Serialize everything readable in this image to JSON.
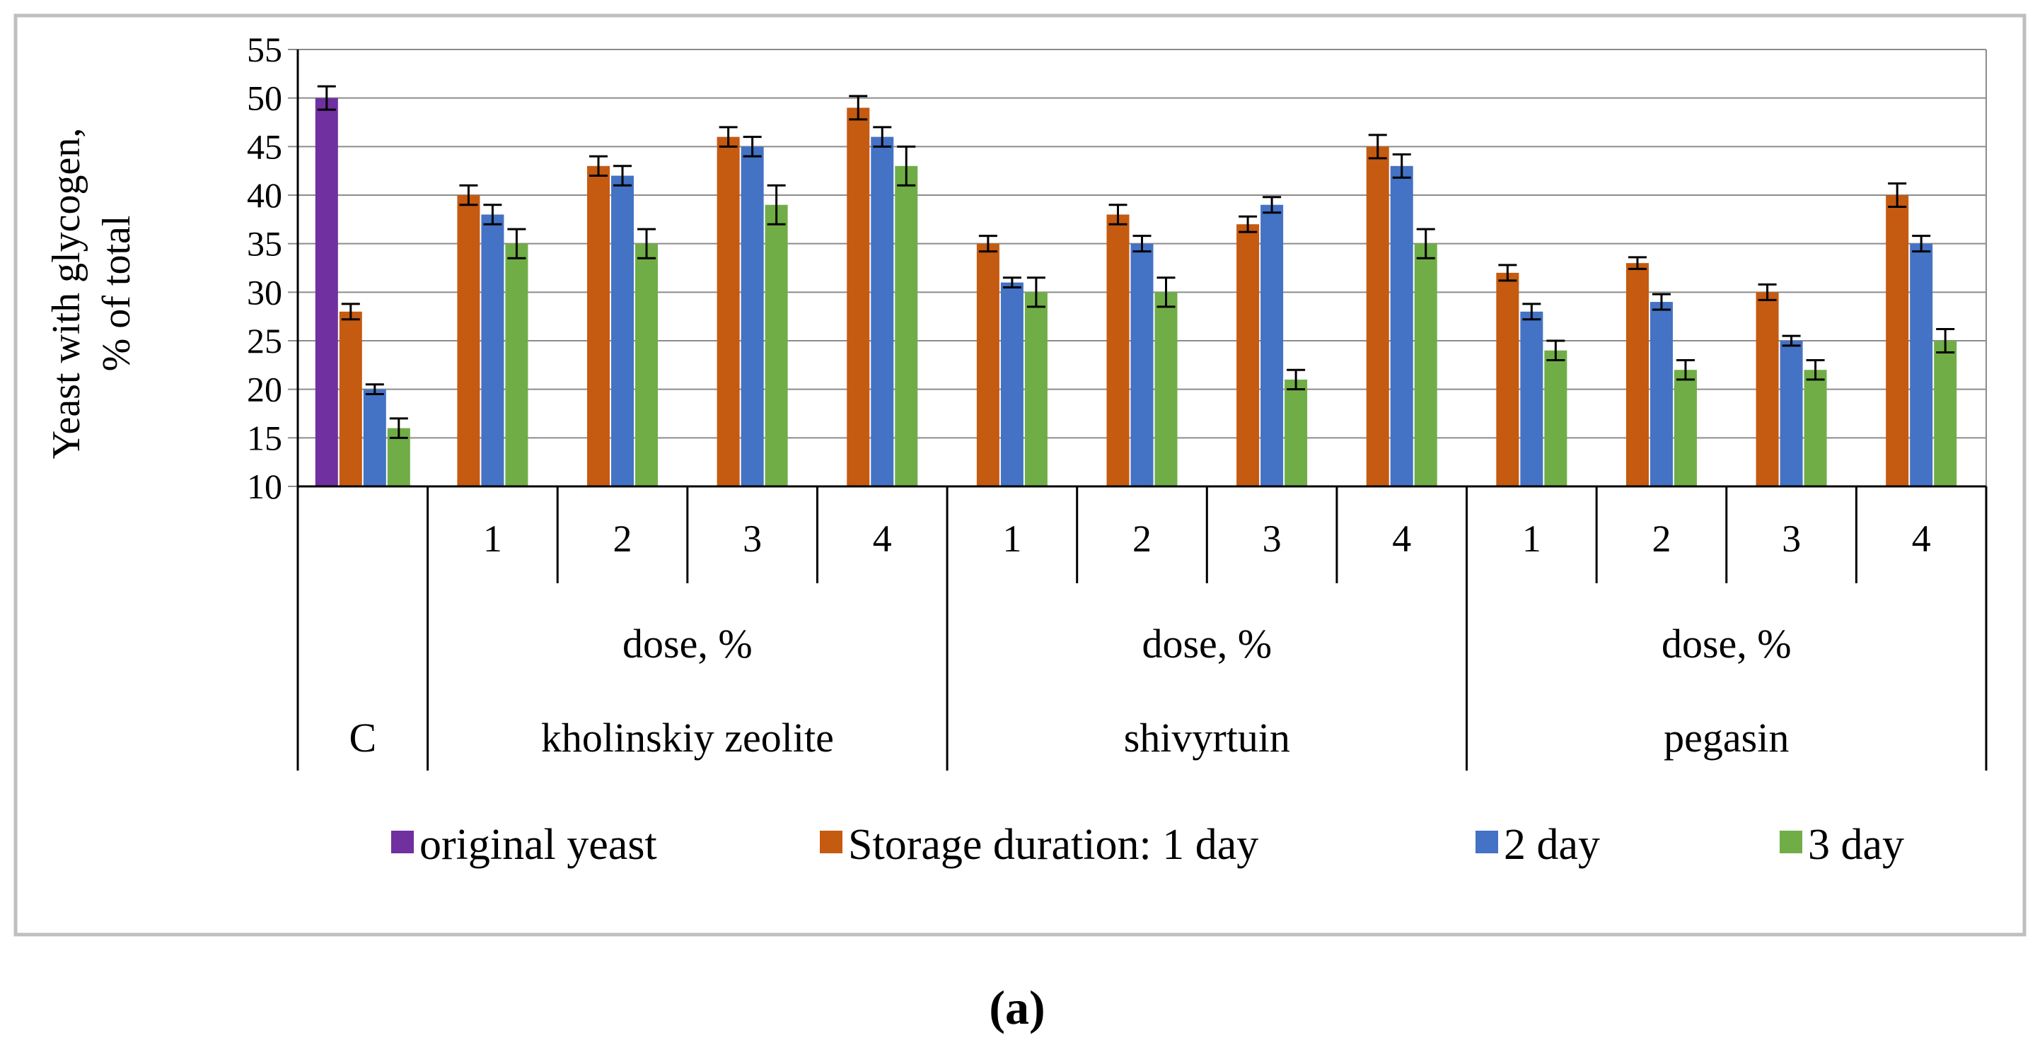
{
  "chart_data": {
    "type": "bar",
    "ylabel_line1": "Yeast with glycogen,",
    "ylabel_line2": "% of total",
    "ylim": [
      10,
      55
    ],
    "y_ticks": [
      "10",
      "15",
      "20",
      "25",
      "30",
      "35",
      "40",
      "45",
      "50",
      "55"
    ],
    "grid": true,
    "series": [
      {
        "name": "original yeast",
        "color": "#7030a0"
      },
      {
        "name": "Storage duration: 1 day",
        "color": "#c55a11"
      },
      {
        "name": "2 day",
        "color": "#4472c4"
      },
      {
        "name": "3 day",
        "color": "#70ad47"
      }
    ],
    "categories": [
      {
        "dose": "",
        "group": "C",
        "bars": [
          {
            "series": 0,
            "value": 50,
            "err": 1.2
          },
          {
            "series": 1,
            "value": 28,
            "err": 0.8
          },
          {
            "series": 2,
            "value": 20,
            "err": 0.5
          },
          {
            "series": 3,
            "value": 16,
            "err": 1.0
          }
        ]
      },
      {
        "dose": "1",
        "group": "kholinskiy zeolite",
        "bars": [
          {
            "series": 1,
            "value": 40,
            "err": 1.0
          },
          {
            "series": 2,
            "value": 38,
            "err": 1.0
          },
          {
            "series": 3,
            "value": 35,
            "err": 1.5
          }
        ]
      },
      {
        "dose": "2",
        "group": "kholinskiy zeolite",
        "bars": [
          {
            "series": 1,
            "value": 43,
            "err": 1.0
          },
          {
            "series": 2,
            "value": 42,
            "err": 1.0
          },
          {
            "series": 3,
            "value": 35,
            "err": 1.5
          }
        ]
      },
      {
        "dose": "3",
        "group": "kholinskiy zeolite",
        "bars": [
          {
            "series": 1,
            "value": 46,
            "err": 1.0
          },
          {
            "series": 2,
            "value": 45,
            "err": 1.0
          },
          {
            "series": 3,
            "value": 39,
            "err": 2.0
          }
        ]
      },
      {
        "dose": "4",
        "group": "kholinskiy zeolite",
        "bars": [
          {
            "series": 1,
            "value": 49,
            "err": 1.2
          },
          {
            "series": 2,
            "value": 46,
            "err": 1.0
          },
          {
            "series": 3,
            "value": 43,
            "err": 2.0
          }
        ]
      },
      {
        "dose": "1",
        "group": "shivyrtuin",
        "bars": [
          {
            "series": 1,
            "value": 35,
            "err": 0.8
          },
          {
            "series": 2,
            "value": 31,
            "err": 0.5
          },
          {
            "series": 3,
            "value": 30,
            "err": 1.5
          }
        ]
      },
      {
        "dose": "2",
        "group": "shivyrtuin",
        "bars": [
          {
            "series": 1,
            "value": 38,
            "err": 1.0
          },
          {
            "series": 2,
            "value": 35,
            "err": 0.8
          },
          {
            "series": 3,
            "value": 30,
            "err": 1.5
          }
        ]
      },
      {
        "dose": "3",
        "group": "shivyrtuin",
        "bars": [
          {
            "series": 1,
            "value": 37,
            "err": 0.8
          },
          {
            "series": 2,
            "value": 39,
            "err": 0.8
          },
          {
            "series": 3,
            "value": 21,
            "err": 1.0
          }
        ]
      },
      {
        "dose": "4",
        "group": "shivyrtuin",
        "bars": [
          {
            "series": 1,
            "value": 45,
            "err": 1.2
          },
          {
            "series": 2,
            "value": 43,
            "err": 1.2
          },
          {
            "series": 3,
            "value": 35,
            "err": 1.5
          }
        ]
      },
      {
        "dose": "1",
        "group": "pegasin",
        "bars": [
          {
            "series": 1,
            "value": 32,
            "err": 0.8
          },
          {
            "series": 2,
            "value": 28,
            "err": 0.8
          },
          {
            "series": 3,
            "value": 24,
            "err": 1.0
          }
        ]
      },
      {
        "dose": "2",
        "group": "pegasin",
        "bars": [
          {
            "series": 1,
            "value": 33,
            "err": 0.6
          },
          {
            "series": 2,
            "value": 29,
            "err": 0.8
          },
          {
            "series": 3,
            "value": 22,
            "err": 1.0
          }
        ]
      },
      {
        "dose": "3",
        "group": "pegasin",
        "bars": [
          {
            "series": 1,
            "value": 30,
            "err": 0.8
          },
          {
            "series": 2,
            "value": 25,
            "err": 0.5
          },
          {
            "series": 3,
            "value": 22,
            "err": 1.0
          }
        ]
      },
      {
        "dose": "4",
        "group": "pegasin",
        "bars": [
          {
            "series": 1,
            "value": 40,
            "err": 1.2
          },
          {
            "series": 2,
            "value": 35,
            "err": 0.8
          },
          {
            "series": 3,
            "value": 25,
            "err": 1.2
          }
        ]
      }
    ],
    "dose_label": "dose, %",
    "groups": [
      {
        "name": "C",
        "show_dose_label": false
      },
      {
        "name": "kholinskiy zeolite",
        "show_dose_label": true
      },
      {
        "name": "shivyrtuin",
        "show_dose_label": true
      },
      {
        "name": "pegasin",
        "show_dose_label": true
      }
    ],
    "legend_position": "bottom"
  },
  "caption": "(a)"
}
